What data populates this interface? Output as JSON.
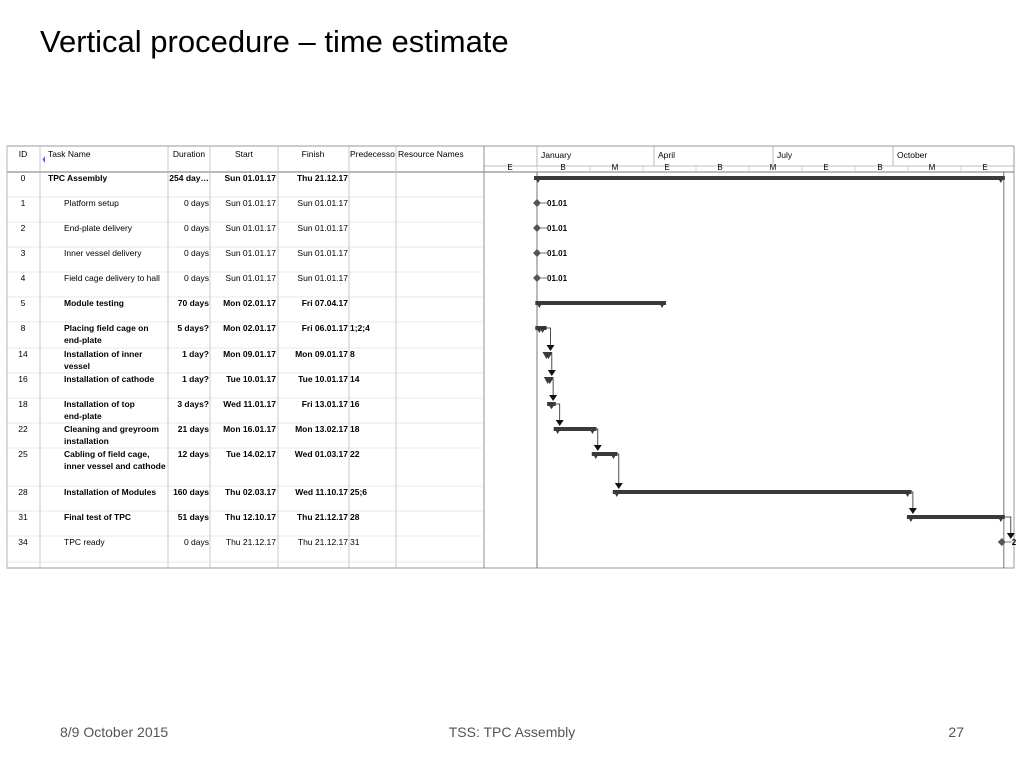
{
  "slide": {
    "title": "Vertical procedure – time estimate",
    "footer_left": "8/9 October 2015",
    "footer_center": "TSS: TPC Assembly",
    "footer_right": "27"
  },
  "chart_data": {
    "type": "gantt",
    "columns": [
      "ID",
      "Task Name",
      "Duration",
      "Start",
      "Finish",
      "Predecesso",
      "Resource Names"
    ],
    "timescale": {
      "months": [
        "January",
        "April",
        "July",
        "October"
      ],
      "letters": [
        "E",
        "B",
        "M",
        "E",
        "B",
        "M",
        "E",
        "B",
        "M",
        "E"
      ]
    },
    "tasks": [
      {
        "id": "0",
        "name": [
          "TPC Assembly"
        ],
        "duration": "254 day…",
        "start": "Sun 01.01.17",
        "finish": "Thu 21.12.17",
        "pred": "",
        "bold": true,
        "indent": false,
        "kind": "summary",
        "s": 1,
        "f": 355,
        "milestone_label": ""
      },
      {
        "id": "1",
        "name": [
          "Platform setup"
        ],
        "duration": "0 days",
        "start": "Sun 01.01.17",
        "finish": "Sun 01.01.17",
        "pred": "",
        "bold": false,
        "indent": true,
        "kind": "milestone",
        "s": 1,
        "f": 1,
        "milestone_label": "01.01"
      },
      {
        "id": "2",
        "name": [
          "End-plate delivery"
        ],
        "duration": "0 days",
        "start": "Sun 01.01.17",
        "finish": "Sun 01.01.17",
        "pred": "",
        "bold": false,
        "indent": true,
        "kind": "milestone",
        "s": 1,
        "f": 1,
        "milestone_label": "01.01"
      },
      {
        "id": "3",
        "name": [
          "Inner vessel delivery"
        ],
        "duration": "0 days",
        "start": "Sun 01.01.17",
        "finish": "Sun 01.01.17",
        "pred": "",
        "bold": false,
        "indent": true,
        "kind": "milestone",
        "s": 1,
        "f": 1,
        "milestone_label": "01.01"
      },
      {
        "id": "4",
        "name": [
          "Field cage delivery to hall"
        ],
        "duration": "0 days",
        "start": "Sun 01.01.17",
        "finish": "Sun 01.01.17",
        "pred": "",
        "bold": false,
        "indent": true,
        "kind": "milestone",
        "s": 1,
        "f": 1,
        "milestone_label": "01.01"
      },
      {
        "id": "5",
        "name": [
          "Module testing"
        ],
        "duration": "70 days",
        "start": "Mon 02.01.17",
        "finish": "Fri 07.04.17",
        "pred": "",
        "bold": true,
        "indent": true,
        "kind": "summary",
        "s": 2,
        "f": 97,
        "milestone_label": ""
      },
      {
        "id": "8",
        "name": [
          "Placing field cage on",
          "end-plate"
        ],
        "duration": "5 days?",
        "start": "Mon 02.01.17",
        "finish": "Fri 06.01.17",
        "pred": "1;2;4",
        "bold": true,
        "indent": true,
        "kind": "summary",
        "s": 2,
        "f": 6,
        "milestone_label": ""
      },
      {
        "id": "14",
        "name": [
          "Installation of inner",
          "vessel"
        ],
        "duration": "1 day?",
        "start": "Mon 09.01.17",
        "finish": "Mon 09.01.17",
        "pred": "8",
        "bold": true,
        "indent": true,
        "kind": "summary",
        "s": 9,
        "f": 9,
        "milestone_label": ""
      },
      {
        "id": "16",
        "name": [
          "Installation of cathode"
        ],
        "duration": "1 day?",
        "start": "Tue 10.01.17",
        "finish": "Tue 10.01.17",
        "pred": "14",
        "bold": true,
        "indent": true,
        "kind": "summary",
        "s": 10,
        "f": 10,
        "milestone_label": ""
      },
      {
        "id": "18",
        "name": [
          "Installation of top",
          "end-plate"
        ],
        "duration": "3 days?",
        "start": "Wed 11.01.17",
        "finish": "Fri 13.01.17",
        "pred": "16",
        "bold": true,
        "indent": true,
        "kind": "summary",
        "s": 11,
        "f": 13,
        "milestone_label": ""
      },
      {
        "id": "22",
        "name": [
          "Cleaning and greyroom",
          "installation"
        ],
        "duration": "21 days",
        "start": "Mon 16.01.17",
        "finish": "Mon 13.02.17",
        "pred": "18",
        "bold": true,
        "indent": true,
        "kind": "summary",
        "s": 16,
        "f": 44,
        "milestone_label": ""
      },
      {
        "id": "25",
        "name": [
          "Cabling of field cage,",
          "inner vessel and cathode"
        ],
        "duration": "12 days",
        "start": "Tue 14.02.17",
        "finish": "Wed 01.03.17",
        "pred": "22",
        "bold": true,
        "indent": true,
        "kind": "summary",
        "s": 45,
        "f": 60,
        "milestone_label": ""
      },
      {
        "id": "28",
        "name": [
          "Installation of Modules"
        ],
        "duration": "160 days",
        "start": "Thu 02.03.17",
        "finish": "Wed 11.10.17",
        "pred": "25;6",
        "bold": true,
        "indent": true,
        "kind": "summary",
        "s": 61,
        "f": 284,
        "milestone_label": ""
      },
      {
        "id": "31",
        "name": [
          "Final test of TPC"
        ],
        "duration": "51 days",
        "start": "Thu 12.10.17",
        "finish": "Thu 21.12.17",
        "pred": "28",
        "bold": true,
        "indent": true,
        "kind": "summary",
        "s": 285,
        "f": 355,
        "milestone_label": ""
      },
      {
        "id": "34",
        "name": [
          "TPC ready"
        ],
        "duration": "0 days",
        "start": "Thu 21.12.17",
        "finish": "Thu 21.12.17",
        "pred": "31",
        "bold": false,
        "indent": true,
        "kind": "milestone",
        "s": 355,
        "f": 355,
        "milestone_label": "2"
      }
    ]
  }
}
